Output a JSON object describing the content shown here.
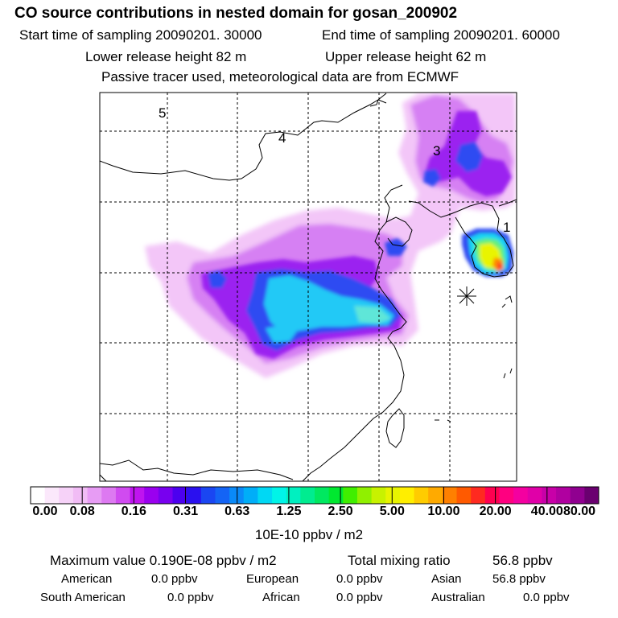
{
  "header": {
    "title": "CO  source contributions in nested domain for gosan_200902",
    "start_label": "Start time of sampling 20090201. 30000",
    "end_label": "End time of sampling 20090201. 60000",
    "lower_label": "Lower release height   82 m",
    "upper_label": "Upper release height   62 m",
    "note": "Passive tracer used, meteorological data are from ECMWF"
  },
  "map": {
    "region_labels": [
      "5",
      "4",
      "3",
      "1"
    ],
    "receptor_icon": "asterisk-receptor-icon"
  },
  "colorbar": {
    "ticks": [
      "0.00",
      "0.08",
      "0.16",
      "0.31",
      "0.63",
      "1.25",
      "2.50",
      "5.00",
      "10.00",
      "20.00",
      "40.00",
      "80.00"
    ],
    "unit": "10E-10 ppbv / m2",
    "colors": [
      "#ffffff",
      "#fbe8fb",
      "#f6d2f8",
      "#f1bcf5",
      "#e79cf4",
      "#dd79f1",
      "#d04bf0",
      "#bf14ef",
      "#9a00ef",
      "#7800ef",
      "#4c00ef",
      "#2a10ef",
      "#1a46f2",
      "#1464f5",
      "#0a8af8",
      "#00aef8",
      "#00d8f4",
      "#00f4e8",
      "#00f0c0",
      "#00ec90",
      "#00e860",
      "#00e830",
      "#40ee00",
      "#90f000",
      "#c8f200",
      "#e8f400",
      "#ffee00",
      "#ffcc00",
      "#ffaa00",
      "#ff8000",
      "#ff5a00",
      "#ff2a20",
      "#ff0050",
      "#ff0080",
      "#f400a0",
      "#e000a8",
      "#c800a8",
      "#b000a0",
      "#900090",
      "#6a0070"
    ]
  },
  "stats": {
    "max_label": "Maximum value  0.190E-08 ppbv / m2",
    "total_label": "Total mixing ratio",
    "total_value": "56.8 ppbv",
    "regions": [
      {
        "name": "American",
        "value": "0.0 ppbv"
      },
      {
        "name": "European",
        "value": "0.0 ppbv"
      },
      {
        "name": "Asian",
        "value": "56.8 ppbv"
      },
      {
        "name": "South American",
        "value": "0.0 ppbv"
      },
      {
        "name": "African",
        "value": "0.0 ppbv"
      },
      {
        "name": "Australian",
        "value": "0.0 ppbv"
      }
    ]
  }
}
